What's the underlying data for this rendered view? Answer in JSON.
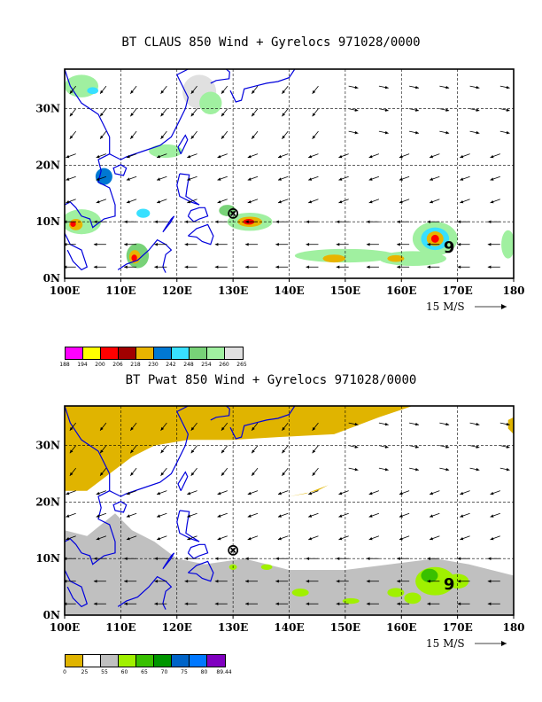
{
  "panels": [
    {
      "title": "BT CLAUS 850 Wind + Gyrelocs 971028/0000",
      "x_ticks": [
        "100E",
        "110E",
        "120E",
        "130E",
        "140E",
        "150E",
        "160E",
        "170E",
        "180"
      ],
      "y_ticks": [
        "0N",
        "10N",
        "20N",
        "30N"
      ],
      "vector_ref": "15 M/S",
      "colorbar": {
        "colors": [
          "#ff00ff",
          "#ffff00",
          "#ff0000",
          "#a00000",
          "#e8b400",
          "#0078d2",
          "#38e0ff",
          "#78d278",
          "#a0f0a0",
          "#e0e0e0"
        ],
        "labels": [
          "188",
          "194",
          "200",
          "206",
          "218",
          "230",
          "242",
          "248",
          "254",
          "260",
          "265"
        ]
      }
    },
    {
      "title": "BT Pwat 850 Wind + Gyrelocs 971028/0000",
      "x_ticks": [
        "100E",
        "110E",
        "120E",
        "130E",
        "140E",
        "150E",
        "160E",
        "170E",
        "180"
      ],
      "y_ticks": [
        "0N",
        "10N",
        "20N",
        "30N"
      ],
      "vector_ref": "15 M/S",
      "colorbar": {
        "colors": [
          "#e0b400",
          "#ffffff",
          "#c0c0c0",
          "#a0f000",
          "#38c000",
          "#009600",
          "#0064c8",
          "#0078ff",
          "#8000c0"
        ],
        "labels": [
          "0",
          "25",
          "55",
          "60",
          "65",
          "70",
          "75",
          "80",
          "89.44"
        ]
      }
    }
  ],
  "storm_markers": [
    {
      "symbol": "⊗",
      "lon": 130,
      "lat": 11.5
    },
    {
      "symbol": "9",
      "lon": 168.5,
      "lat": 5.5
    }
  ],
  "colors": {
    "coastline": "#0000dc",
    "frame": "#000000"
  }
}
